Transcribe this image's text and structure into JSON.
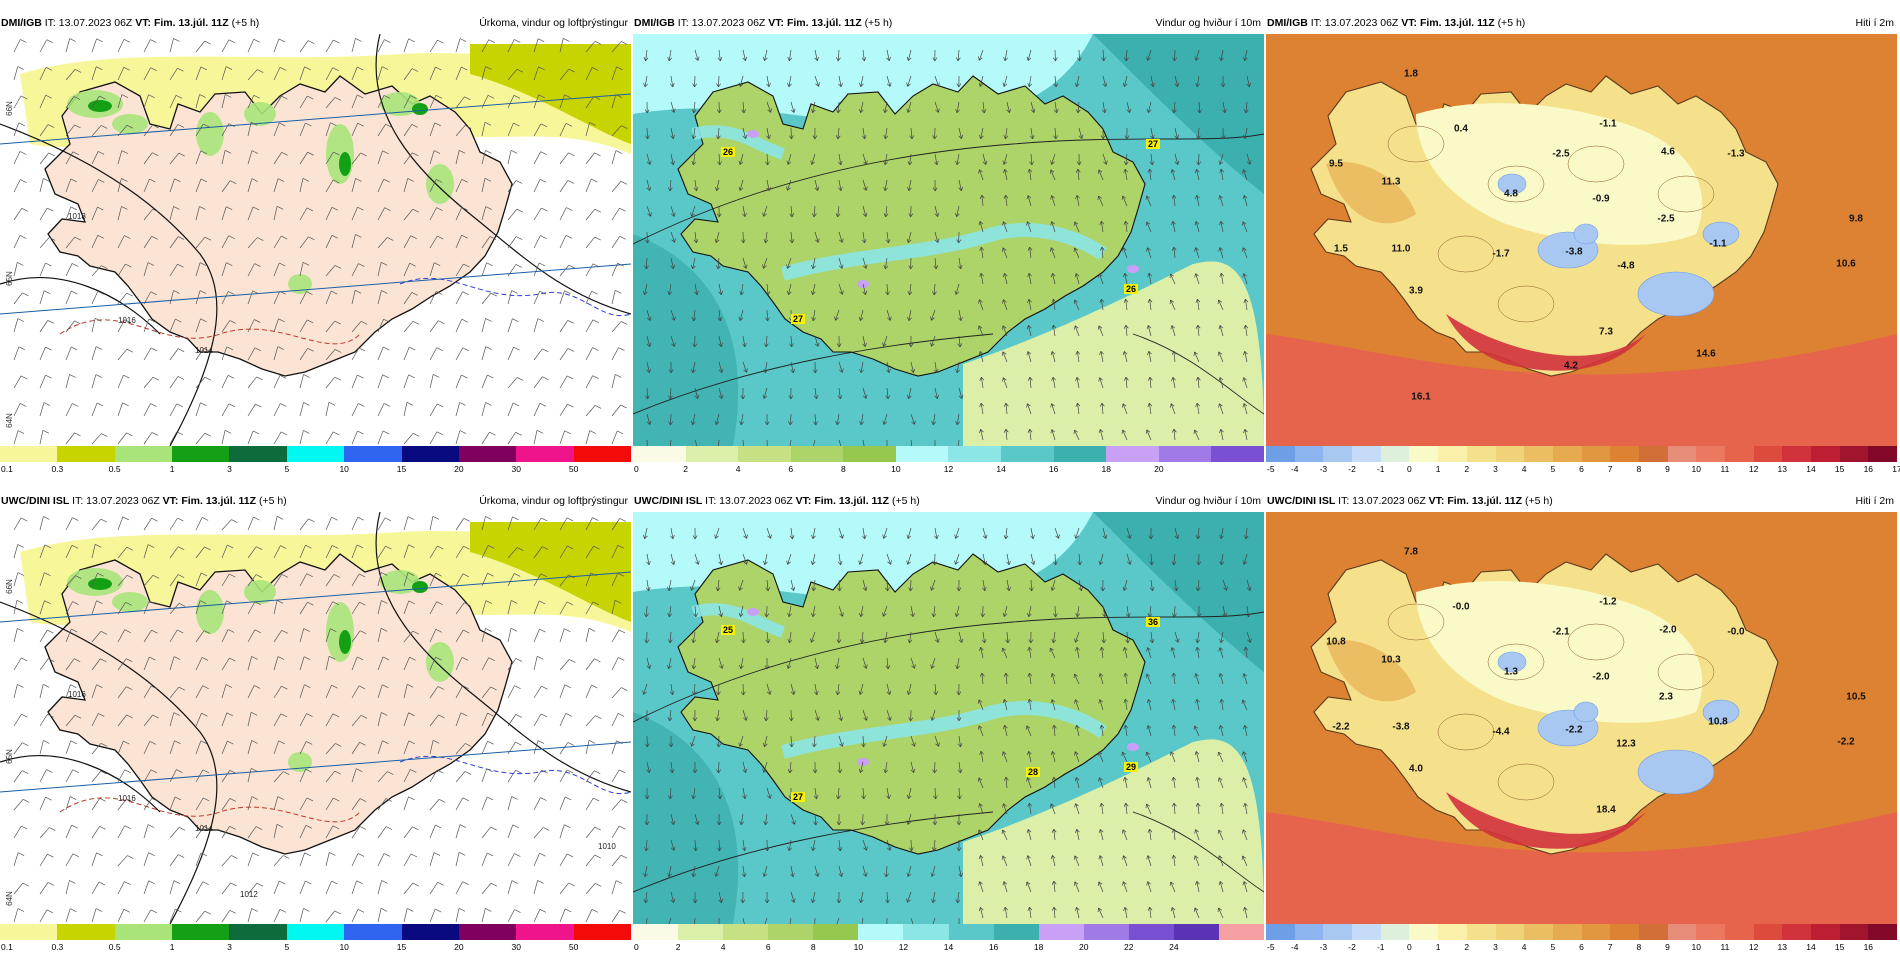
{
  "panels": [
    {
      "source": "DMI/IGB",
      "it": "IT: 13.07.2023 06Z",
      "vt_label": "VT:",
      "vt": "Fim. 13.júl. 11Z",
      "lead": "(+5 h)",
      "title": "Úrkoma, vindur og loftþrýstingur",
      "colorbar": {
        "colors": [
          "#f7f79a",
          "#c7d400",
          "#a8e47a",
          "#14a014",
          "#0d6b3c",
          "#00f7f2",
          "#2f64f0",
          "#0a0a80",
          "#800060",
          "#f0148c",
          "#f50a0a"
        ],
        "ticks": [
          "0.1",
          "0.3",
          "0.5",
          "1",
          "3",
          "5",
          "10",
          "15",
          "20",
          "30",
          "50"
        ]
      },
      "isobars": [
        "1018",
        "1016",
        "1014"
      ],
      "lat_labels": [
        "66N",
        "65N",
        "64N"
      ]
    },
    {
      "source": "DMI/IGB",
      "it": "IT: 13.07.2023 06Z",
      "vt_label": "VT:",
      "vt": "Fim. 13.júl. 11Z",
      "lead": "(+5 h)",
      "title": "Vindur og hviður í 10m",
      "colorbar": {
        "colors": [
          "#fafae6",
          "#dcefa8",
          "#c5e184",
          "#acd468",
          "#96c850",
          "#b4fafa",
          "#8ce6e6",
          "#5ac8c8",
          "#3cafaf",
          "#c8a0f5",
          "#a07ae6",
          "#7a50d2"
        ],
        "ticks": [
          "0",
          "2",
          "4",
          "6",
          "8",
          "10",
          "12",
          "14",
          "16",
          "18",
          "20"
        ]
      },
      "gust_labels": [
        "26",
        "27",
        "26",
        "27"
      ]
    },
    {
      "source": "DMI/IGB",
      "it": "IT: 13.07.2023 06Z",
      "vt_label": "VT:",
      "vt": "Fim. 13.júl. 11Z",
      "lead": "(+5 h)",
      "title": "Hiti í 2m",
      "colorbar": {
        "colors": [
          "#6e9ee6",
          "#8cb4ee",
          "#a8c8f2",
          "#c4dcf8",
          "#dcf0dc",
          "#fafac8",
          "#faf0aa",
          "#f5e18c",
          "#f0d278",
          "#ebbe64",
          "#e6aa50",
          "#e19640",
          "#dc8232",
          "#d26e37",
          "#e68c78",
          "#eb785f",
          "#e6644b",
          "#dc4b3c",
          "#d2323c",
          "#be1e32",
          "#a0142d",
          "#820a28"
        ],
        "ticks": [
          "-5",
          "-4",
          "-3",
          "-2",
          "-1",
          "0",
          "1",
          "2",
          "3",
          "4",
          "5",
          "6",
          "7",
          "8",
          "9",
          "10",
          "11",
          "12",
          "13",
          "14",
          "15",
          "16",
          "17"
        ]
      },
      "temps": [
        "1.8",
        "0.4",
        "9.5",
        "11.3",
        "-1.1",
        "-2.5",
        "4.6",
        "-1.3",
        "4.8",
        "-0.9",
        "-2.5",
        "9.8",
        "1.5",
        "11.0",
        "-1.7",
        "-3.8",
        "-1.1",
        "-4.8",
        "10.6",
        "3.9",
        "7.3",
        "14.6",
        "4.2",
        "16.1"
      ]
    },
    {
      "source": "UWC/DINI ISL",
      "it": "IT: 13.07.2023 06Z",
      "vt_label": "VT:",
      "vt": "Fim. 13.júl. 11Z",
      "lead": "(+5 h)",
      "title": "Úrkoma, vindur og loftþrýstingur",
      "colorbar": {
        "colors": [
          "#f7f79a",
          "#c7d400",
          "#a8e47a",
          "#14a014",
          "#0d6b3c",
          "#00f7f2",
          "#2f64f0",
          "#0a0a80",
          "#800060",
          "#f0148c",
          "#f50a0a"
        ],
        "ticks": [
          "0.1",
          "0.3",
          "0.5",
          "1",
          "3",
          "5",
          "10",
          "15",
          "20",
          "30",
          "50"
        ]
      },
      "isobars": [
        "1016",
        "1016",
        "1014",
        "1012",
        "1010"
      ],
      "lat_labels": [
        "66N",
        "65N",
        "64N"
      ]
    },
    {
      "source": "UWC/DINI ISL",
      "it": "IT: 13.07.2023 06Z",
      "vt_label": "VT:",
      "vt": "Fim. 13.júl. 11Z",
      "lead": "(+5 h)",
      "title": "Vindur og hviður í 10m",
      "colorbar": {
        "colors": [
          "#fafae6",
          "#dcefa8",
          "#c5e184",
          "#acd468",
          "#96c850",
          "#b4fafa",
          "#8ce6e6",
          "#5ac8c8",
          "#3cafaf",
          "#c8a0f5",
          "#a07ae6",
          "#7a50d2",
          "#5a32b4",
          "#f5a0a0"
        ],
        "ticks": [
          "0",
          "2",
          "4",
          "6",
          "8",
          "10",
          "12",
          "14",
          "16",
          "18",
          "20",
          "22",
          "24"
        ]
      },
      "gust_labels": [
        "25",
        "36",
        "29",
        "27",
        "28"
      ]
    },
    {
      "source": "UWC/DINI ISL",
      "it": "IT: 13.07.2023 06Z",
      "vt_label": "VT:",
      "vt": "Fim. 13.júl. 11Z",
      "lead": "(+5 h)",
      "title": "Hiti í 2m",
      "colorbar": {
        "colors": [
          "#6e9ee6",
          "#8cb4ee",
          "#a8c8f2",
          "#c4dcf8",
          "#dcf0dc",
          "#fafac8",
          "#faf0aa",
          "#f5e18c",
          "#f0d278",
          "#ebbe64",
          "#e6aa50",
          "#e19640",
          "#dc8232",
          "#d26e37",
          "#e68c78",
          "#eb785f",
          "#e6644b",
          "#dc4b3c",
          "#d2323c",
          "#be1e32",
          "#a0142d",
          "#820a28"
        ],
        "ticks": [
          "-5",
          "-4",
          "-3",
          "-2",
          "-1",
          "0",
          "1",
          "2",
          "3",
          "4",
          "5",
          "6",
          "7",
          "8",
          "9",
          "10",
          "11",
          "12",
          "13",
          "14",
          "15",
          "16"
        ]
      },
      "temps": [
        "7.8",
        "-0.0",
        "10.8",
        "10.3",
        "-1.2",
        "-2.1",
        "-2.0",
        "-0.0",
        "1.3",
        "-2.0",
        "2.3",
        "10.5",
        "-2.2",
        "-3.8",
        "-4.4",
        "-2.2",
        "10.8",
        "12.3",
        "-2.2",
        "4.0",
        "18.4"
      ]
    }
  ]
}
